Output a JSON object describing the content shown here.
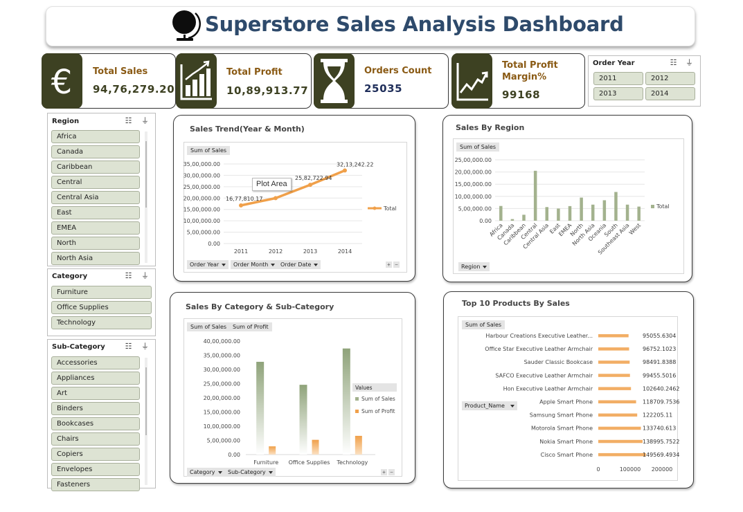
{
  "header": {
    "title": "Superstore Sales Analysis Dashboard"
  },
  "kpis": [
    {
      "label": "Total Sales",
      "value": "94,76,279.20",
      "icon": "euro-icon"
    },
    {
      "label": "Total Profit",
      "value": "10,89,913.77",
      "icon": "bar-chart-icon"
    },
    {
      "label": "Orders Count",
      "value": "25035",
      "icon": "hourglass-icon"
    },
    {
      "label": "Total Profit Margin%",
      "value": "99168",
      "icon": "trend-icon"
    }
  ],
  "colors": {
    "accent_dark": "#3d4122",
    "label_brown": "#8a5a14",
    "title_blue": "#2e4a6b",
    "slicer_fill": "#dde3d3",
    "bar_green": "#a3b28e",
    "orange": "#f0a04a"
  },
  "slicers": {
    "order_year": {
      "title": "Order Year",
      "items": [
        "2011",
        "2012",
        "2013",
        "2014"
      ]
    },
    "region": {
      "title": "Region",
      "items": [
        "Africa",
        "Canada",
        "Caribbean",
        "Central",
        "Central Asia",
        "East",
        "EMEA",
        "North",
        "North Asia"
      ]
    },
    "category": {
      "title": "Category",
      "items": [
        "Furniture",
        "Office Supplies",
        "Technology"
      ]
    },
    "subcategory": {
      "title": "Sub-Category",
      "items": [
        "Accessories",
        "Appliances",
        "Art",
        "Binders",
        "Bookcases",
        "Chairs",
        "Copiers",
        "Envelopes",
        "Fasteners"
      ]
    }
  },
  "sales_trend": {
    "title": "Sales Trend(Year & Month)",
    "value_tag": "Sum of Sales",
    "tooltip": "Plot Area",
    "filters": [
      "Order Year",
      "Order Month",
      "Order Date"
    ],
    "plus": "+",
    "minus": "−"
  },
  "sales_region": {
    "title": "Sales By Region",
    "value_tag": "Sum of Sales",
    "filters": [
      "Region"
    ]
  },
  "sales_category": {
    "title": "Sales By Category & Sub-Category",
    "value_tags": [
      "Sum of Sales",
      "Sum of Profit"
    ],
    "legend_title": "Values",
    "filters": [
      "Category",
      "Sub-Category"
    ],
    "plus": "+",
    "minus": "−"
  },
  "top_products": {
    "title": "Top 10 Products By Sales",
    "value_tag": "Sum of Sales",
    "filter": "Product_Name"
  },
  "chart_data": [
    {
      "type": "line",
      "title": "Sales Trend(Year & Month)",
      "x": [
        "2011",
        "2012",
        "2013",
        "2014"
      ],
      "series": [
        {
          "name": "Total",
          "values": [
            1677810.17,
            1998000,
            2582722.94,
            3213242.22
          ]
        }
      ],
      "data_labels": [
        "16,77,810.17",
        "",
        "25,82,722.94",
        "32,13,242.22"
      ],
      "ylim": [
        0,
        3500000
      ],
      "yticks": [
        "0.00",
        "5,00,000.00",
        "10,00,000.00",
        "15,00,000.00",
        "20,00,000.00",
        "25,00,000.00",
        "30,00,000.00",
        "35,00,000.00"
      ],
      "legend": "right"
    },
    {
      "type": "bar",
      "title": "Sales By Region",
      "categories": [
        "Africa",
        "Canada",
        "Caribbean",
        "Central",
        "Central Asia",
        "East",
        "EMEA",
        "North",
        "North Asia",
        "Oceania",
        "South",
        "Southeast Asia",
        "West"
      ],
      "series": [
        {
          "name": "Total",
          "values": [
            605000,
            67000,
            245000,
            2050000,
            560000,
            500000,
            600000,
            950000,
            660000,
            840000,
            1180000,
            660000,
            580000
          ]
        }
      ],
      "ylim": [
        0,
        2500000
      ],
      "yticks": [
        "0.00",
        "5,00,000.00",
        "10,00,000.00",
        "15,00,000.00",
        "20,00,000.00",
        "25,00,000.00"
      ],
      "legend": "right"
    },
    {
      "type": "bar",
      "title": "Sales By Category & Sub-Category",
      "categories": [
        "Furniture",
        "Office Supplies",
        "Technology"
      ],
      "series": [
        {
          "name": "Sum of Sales",
          "values": [
            3270000,
            2460000,
            3740000
          ]
        },
        {
          "name": "Sum of Profit",
          "values": [
            290000,
            520000,
            660000
          ]
        }
      ],
      "ylim": [
        0,
        4000000
      ],
      "yticks": [
        "0.00",
        "5,00,000.00",
        "10,00,000.00",
        "15,00,000.00",
        "20,00,000.00",
        "25,00,000.00",
        "30,00,000.00",
        "35,00,000.00",
        "40,00,000.00"
      ],
      "legend": "right"
    },
    {
      "type": "bar",
      "orientation": "horizontal",
      "title": "Top 10 Products By Sales",
      "categories": [
        "Harbour Creations Executive Leather...",
        "Office Star Executive Leather Armchair",
        "Sauder Classic Bookcase",
        "SAFCO Executive Leather Armchair",
        "Hon Executive Leather Armchair",
        "Apple Smart Phone",
        "Samsung Smart Phone",
        "Motorola Smart Phone",
        "Nokia Smart Phone",
        "Cisco Smart Phone"
      ],
      "values": [
        95055.6304,
        96752.1023,
        98491.8388,
        99455.5016,
        102640.2462,
        118709.7536,
        122205.11,
        133740.613,
        138995.7522,
        149569.4934
      ],
      "value_labels": [
        "95055.6304",
        "96752.1023",
        "98491.8388",
        "99455.5016",
        "102640.2462",
        "118709.7536",
        "122205.11",
        "133740.613",
        "138995.7522",
        "149569.4934"
      ],
      "xlim": [
        0,
        200000
      ],
      "xticks": [
        "0",
        "100000",
        "200000"
      ]
    }
  ]
}
